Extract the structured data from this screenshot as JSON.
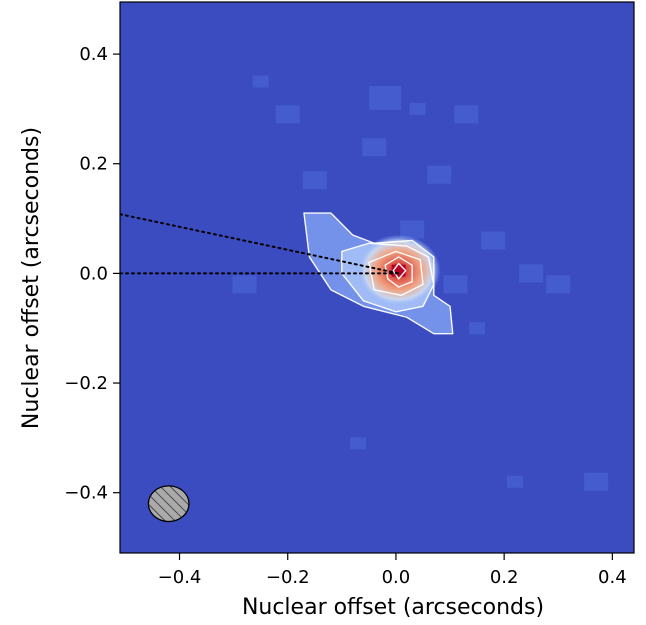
{
  "chart_data": {
    "type": "heatmap",
    "title": "",
    "xlabel": "Nuclear offset (arcseconds)",
    "ylabel": "Nuclear offset (arcseconds)",
    "xlim": [
      -0.51,
      0.44
    ],
    "ylim": [
      -0.51,
      0.495
    ],
    "xticks": [
      -0.4,
      -0.2,
      0.0,
      0.2,
      0.4
    ],
    "xtick_labels": [
      "−0.4",
      "−0.2",
      "0.0",
      "0.2",
      "0.4"
    ],
    "yticks": [
      -0.4,
      -0.2,
      0.0,
      0.2,
      0.4
    ],
    "ytick_labels": [
      "−0.4",
      "−0.2",
      "0.0",
      "0.2",
      "0.4"
    ],
    "grid": false,
    "colormap": "coolwarm",
    "background_color": "#3b4cc0",
    "peak": {
      "x": 0.005,
      "y": 0.005
    },
    "contour_color": "#ffffff",
    "contours": [
      [
        [
          -0.17,
          0.11
        ],
        [
          -0.12,
          0.11
        ],
        [
          -0.08,
          0.07
        ],
        [
          -0.04,
          0.055
        ],
        [
          0.03,
          0.06
        ],
        [
          0.07,
          0.03
        ],
        [
          0.07,
          -0.04
        ],
        [
          0.1,
          -0.06
        ],
        [
          0.105,
          -0.11
        ],
        [
          0.07,
          -0.11
        ],
        [
          0.02,
          -0.08
        ],
        [
          -0.06,
          -0.06
        ],
        [
          -0.12,
          -0.03
        ],
        [
          -0.16,
          0.03
        ]
      ],
      [
        [
          -0.1,
          0.04
        ],
        [
          -0.05,
          0.055
        ],
        [
          0.02,
          0.05
        ],
        [
          0.06,
          0.03
        ],
        [
          0.07,
          -0.02
        ],
        [
          0.05,
          -0.06
        ],
        [
          0.0,
          -0.07
        ],
        [
          -0.06,
          -0.05
        ],
        [
          -0.1,
          0.0
        ]
      ],
      [
        [
          -0.05,
          0.02
        ],
        [
          0.0,
          0.04
        ],
        [
          0.045,
          0.025
        ],
        [
          0.05,
          -0.02
        ],
        [
          0.01,
          -0.04
        ],
        [
          -0.04,
          -0.03
        ]
      ],
      [
        [
          -0.02,
          0.015
        ],
        [
          0.005,
          0.03
        ],
        [
          0.03,
          0.015
        ],
        [
          0.03,
          -0.015
        ],
        [
          0.005,
          -0.025
        ],
        [
          -0.015,
          -0.01
        ]
      ],
      [
        [
          -0.005,
          0.005
        ],
        [
          0.005,
          0.018
        ],
        [
          0.018,
          0.005
        ],
        [
          0.005,
          -0.01
        ]
      ]
    ],
    "dotted_lines": [
      {
        "x": [
          -0.51,
          0.005
        ],
        "y": [
          0.0,
          0.0
        ]
      },
      {
        "x": [
          -0.51,
          0.005
        ],
        "y": [
          0.108,
          0.0
        ]
      }
    ],
    "beam": {
      "center_x": -0.42,
      "center_y": -0.42,
      "width": 0.075,
      "height": 0.065,
      "hatch": "diagonal",
      "fill": "#aaaaaa"
    }
  }
}
